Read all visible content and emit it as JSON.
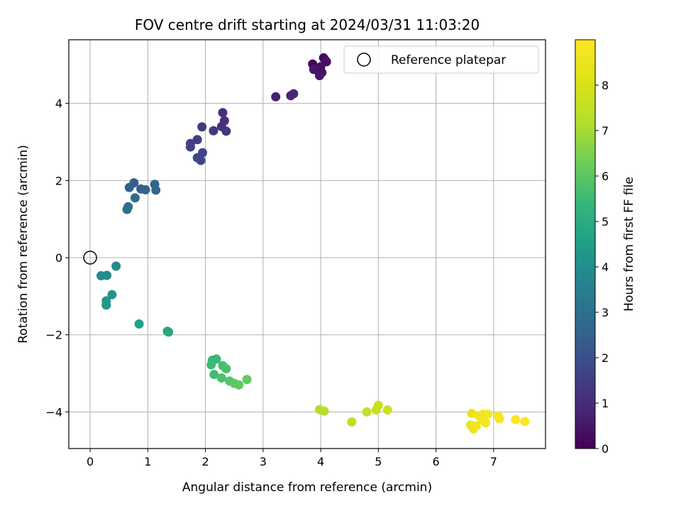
{
  "chart_data": {
    "type": "scatter",
    "title": "FOV centre drift starting at 2024/03/31 11:03:20",
    "xlabel": "Angular distance from reference (arcmin)",
    "ylabel": "Rotation from reference (arcmin)",
    "xlim": [
      -0.37,
      7.9
    ],
    "ylim": [
      -4.95,
      5.65
    ],
    "xticks": [
      0,
      1,
      2,
      3,
      4,
      5,
      6,
      7
    ],
    "yticks": [
      -4,
      -2,
      0,
      2,
      4
    ],
    "grid": true,
    "legend": {
      "placement": "top-right",
      "entries": [
        "Reference platepar"
      ]
    },
    "reference_point": {
      "x": 0,
      "y": 0,
      "label": "Reference platepar"
    },
    "colorbar": {
      "label": "Hours from first FF file",
      "colormap": "viridis",
      "range": [
        0,
        9.0
      ],
      "ticks": [
        0,
        1,
        2,
        3,
        4,
        5,
        6,
        7,
        8
      ]
    },
    "points": [
      {
        "x": 3.86,
        "y": 5.02,
        "c": 0.05
      },
      {
        "x": 4.05,
        "y": 5.18,
        "c": 0.1
      },
      {
        "x": 4.08,
        "y": 5.12,
        "c": 0.15
      },
      {
        "x": 3.9,
        "y": 4.9,
        "c": 0.2
      },
      {
        "x": 3.95,
        "y": 4.85,
        "c": 0.25
      },
      {
        "x": 4.0,
        "y": 4.95,
        "c": 0.3
      },
      {
        "x": 4.1,
        "y": 5.08,
        "c": 0.35
      },
      {
        "x": 4.02,
        "y": 4.8,
        "c": 0.4
      },
      {
        "x": 3.98,
        "y": 4.72,
        "c": 0.45
      },
      {
        "x": 3.88,
        "y": 4.88,
        "c": 0.5
      },
      {
        "x": 3.22,
        "y": 4.17,
        "c": 0.7
      },
      {
        "x": 3.48,
        "y": 4.2,
        "c": 0.8
      },
      {
        "x": 3.53,
        "y": 4.25,
        "c": 0.85
      },
      {
        "x": 2.3,
        "y": 3.76,
        "c": 1.1
      },
      {
        "x": 2.33,
        "y": 3.55,
        "c": 1.15
      },
      {
        "x": 2.28,
        "y": 3.4,
        "c": 1.2
      },
      {
        "x": 2.36,
        "y": 3.28,
        "c": 1.25
      },
      {
        "x": 2.14,
        "y": 3.29,
        "c": 1.3
      },
      {
        "x": 1.94,
        "y": 3.39,
        "c": 1.4
      },
      {
        "x": 1.86,
        "y": 3.06,
        "c": 1.5
      },
      {
        "x": 1.74,
        "y": 2.96,
        "c": 1.55
      },
      {
        "x": 1.74,
        "y": 2.87,
        "c": 1.6
      },
      {
        "x": 1.95,
        "y": 2.72,
        "c": 1.65
      },
      {
        "x": 1.86,
        "y": 2.59,
        "c": 1.7
      },
      {
        "x": 1.92,
        "y": 2.52,
        "c": 1.75
      },
      {
        "x": 0.76,
        "y": 1.94,
        "c": 2.4
      },
      {
        "x": 0.68,
        "y": 1.82,
        "c": 2.45
      },
      {
        "x": 0.88,
        "y": 1.78,
        "c": 2.5
      },
      {
        "x": 0.96,
        "y": 1.76,
        "c": 2.55
      },
      {
        "x": 1.12,
        "y": 1.9,
        "c": 2.6
      },
      {
        "x": 1.14,
        "y": 1.75,
        "c": 2.7
      },
      {
        "x": 0.78,
        "y": 1.55,
        "c": 2.8
      },
      {
        "x": 0.66,
        "y": 1.32,
        "c": 2.9
      },
      {
        "x": 0.64,
        "y": 1.25,
        "c": 2.95
      },
      {
        "x": 0.45,
        "y": -0.22,
        "c": 3.8
      },
      {
        "x": 0.29,
        "y": -0.46,
        "c": 3.9
      },
      {
        "x": 0.19,
        "y": -0.47,
        "c": 3.95
      },
      {
        "x": 0.38,
        "y": -0.96,
        "c": 4.2
      },
      {
        "x": 0.28,
        "y": -1.12,
        "c": 4.3
      },
      {
        "x": 0.28,
        "y": -1.23,
        "c": 4.35
      },
      {
        "x": 0.85,
        "y": -1.72,
        "c": 4.6
      },
      {
        "x": 1.34,
        "y": -1.91,
        "c": 4.8
      },
      {
        "x": 1.36,
        "y": -1.93,
        "c": 4.85
      },
      {
        "x": 2.12,
        "y": -2.66,
        "c": 5.4
      },
      {
        "x": 2.19,
        "y": -2.63,
        "c": 5.45
      },
      {
        "x": 2.1,
        "y": -2.78,
        "c": 5.5
      },
      {
        "x": 2.15,
        "y": -3.03,
        "c": 5.6
      },
      {
        "x": 2.3,
        "y": -2.8,
        "c": 5.7
      },
      {
        "x": 2.36,
        "y": -2.88,
        "c": 5.75
      },
      {
        "x": 2.28,
        "y": -3.12,
        "c": 5.8
      },
      {
        "x": 2.42,
        "y": -3.2,
        "c": 5.9
      },
      {
        "x": 2.5,
        "y": -3.26,
        "c": 6.0
      },
      {
        "x": 2.58,
        "y": -3.3,
        "c": 6.05
      },
      {
        "x": 2.72,
        "y": -3.16,
        "c": 6.1
      },
      {
        "x": 3.98,
        "y": -3.94,
        "c": 7.2
      },
      {
        "x": 4.06,
        "y": -3.98,
        "c": 7.25
      },
      {
        "x": 4.54,
        "y": -4.26,
        "c": 7.4
      },
      {
        "x": 4.8,
        "y": -4.0,
        "c": 7.5
      },
      {
        "x": 4.96,
        "y": -3.95,
        "c": 7.6
      },
      {
        "x": 5.0,
        "y": -3.83,
        "c": 7.65
      },
      {
        "x": 5.16,
        "y": -3.95,
        "c": 7.7
      },
      {
        "x": 6.62,
        "y": -4.04,
        "c": 8.4
      },
      {
        "x": 6.6,
        "y": -4.34,
        "c": 8.5
      },
      {
        "x": 6.65,
        "y": -4.44,
        "c": 8.55
      },
      {
        "x": 6.7,
        "y": -4.36,
        "c": 8.6
      },
      {
        "x": 6.74,
        "y": -4.1,
        "c": 8.65
      },
      {
        "x": 6.8,
        "y": -4.2,
        "c": 8.7
      },
      {
        "x": 6.82,
        "y": -4.06,
        "c": 8.72
      },
      {
        "x": 6.86,
        "y": -4.28,
        "c": 8.75
      },
      {
        "x": 6.9,
        "y": -4.06,
        "c": 8.78
      },
      {
        "x": 7.08,
        "y": -4.1,
        "c": 8.82
      },
      {
        "x": 7.1,
        "y": -4.18,
        "c": 8.85
      },
      {
        "x": 7.38,
        "y": -4.2,
        "c": 8.9
      },
      {
        "x": 7.54,
        "y": -4.25,
        "c": 8.95
      }
    ]
  }
}
